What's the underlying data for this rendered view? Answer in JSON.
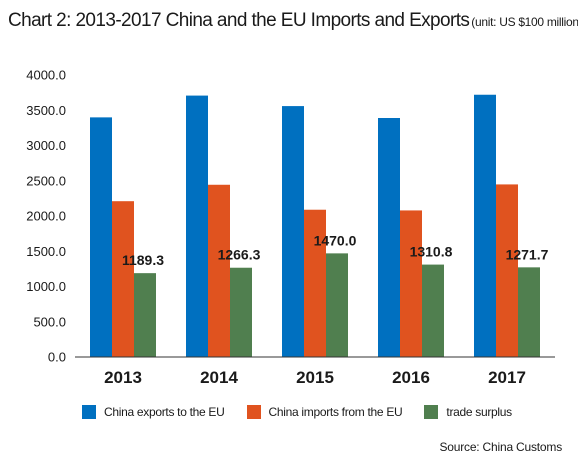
{
  "title": "Chart 2: 2013-2017 China and the EU Imports and Exports",
  "unit_note": "(unit: US $100 million)",
  "source": "Source: China Customs",
  "colors": {
    "exports": "#0070c0",
    "imports": "#e0531f",
    "surplus": "#507f4f",
    "axis": "#333333"
  },
  "chart_data": {
    "type": "bar",
    "title": "Chart 2: 2013-2017 China and the EU Imports and Exports",
    "xlabel": "",
    "ylabel": "",
    "categories": [
      "2013",
      "2014",
      "2015",
      "2016",
      "2017"
    ],
    "ylim": [
      0,
      4000
    ],
    "yticks": [
      "0.0",
      "500.0",
      "1000.0",
      "1500.0",
      "2000.0",
      "2500.0",
      "3000.0",
      "3500.0",
      "4000.0"
    ],
    "grid": false,
    "legend_position": "bottom",
    "series": [
      {
        "name": "China exports to the EU",
        "values": [
          3399,
          3708,
          3559,
          3390,
          3720
        ]
      },
      {
        "name": "China imports from the EU",
        "values": [
          2210,
          2443,
          2089,
          2079,
          2448
        ]
      },
      {
        "name": "trade surplus",
        "values": [
          1189.3,
          1266.3,
          1470.0,
          1310.8,
          1271.7
        ],
        "labels": [
          "1189.3",
          "1266.3",
          "1470.0",
          "1310.8",
          "1271.7"
        ]
      }
    ]
  }
}
